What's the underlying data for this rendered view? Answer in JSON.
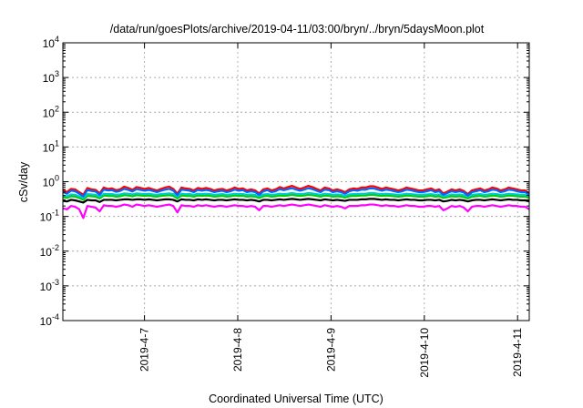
{
  "chart_data": {
    "type": "line",
    "title": "/data/run/goesPlots/archive/2019-04-11/03:00/bryn/../bryn/5daysMoon.plot",
    "xlabel": "Coordinated Universal Time (UTC)",
    "ylabel": "cSv/day",
    "yscale": "log",
    "ylim": [
      0.0001,
      10000
    ],
    "y_ticks": [
      {
        "value": 0.0001,
        "base": "10",
        "exp": "-4"
      },
      {
        "value": 0.001,
        "base": "10",
        "exp": "-3"
      },
      {
        "value": 0.01,
        "base": "10",
        "exp": "-2"
      },
      {
        "value": 0.1,
        "base": "10",
        "exp": "-1"
      },
      {
        "value": 1,
        "base": "10",
        "exp": "0"
      },
      {
        "value": 10,
        "base": "10",
        "exp": "1"
      },
      {
        "value": 100,
        "base": "10",
        "exp": "2"
      },
      {
        "value": 1000,
        "base": "10",
        "exp": "3"
      },
      {
        "value": 10000,
        "base": "10",
        "exp": "4"
      }
    ],
    "x_ticks": [
      "2019-4-7",
      "2019-4-8",
      "2019-4-9",
      "2019-4-10",
      "2019-4-11"
    ],
    "xlim": [
      "2019-04-06T03:00",
      "2019-04-11T03:00"
    ],
    "grid": true,
    "legend": "none",
    "series": [
      {
        "color": "#ff00ff",
        "values": [
          0.17,
          0.16,
          0.2,
          0.19,
          0.16,
          0.09,
          0.2,
          0.19,
          0.18,
          0.14,
          0.21,
          0.2,
          0.2,
          0.19,
          0.2,
          0.22,
          0.21,
          0.19,
          0.22,
          0.21,
          0.2,
          0.21,
          0.2,
          0.19,
          0.2,
          0.21,
          0.22,
          0.2,
          0.13,
          0.21,
          0.2,
          0.2,
          0.19,
          0.21,
          0.2,
          0.21,
          0.2,
          0.19,
          0.2,
          0.2,
          0.19,
          0.2,
          0.21,
          0.2,
          0.2,
          0.19,
          0.2,
          0.19,
          0.15,
          0.2,
          0.2,
          0.19,
          0.2,
          0.21,
          0.2,
          0.21,
          0.22,
          0.21,
          0.2,
          0.21,
          0.22,
          0.21,
          0.2,
          0.19,
          0.21,
          0.2,
          0.19,
          0.2,
          0.19,
          0.17,
          0.2,
          0.2,
          0.2,
          0.21,
          0.21,
          0.22,
          0.22,
          0.21,
          0.2,
          0.21,
          0.2,
          0.2,
          0.19,
          0.2,
          0.21,
          0.2,
          0.2,
          0.19,
          0.19,
          0.2,
          0.2,
          0.19,
          0.2,
          0.15,
          0.17,
          0.2,
          0.19,
          0.2,
          0.18,
          0.14,
          0.19,
          0.2,
          0.2,
          0.19,
          0.2,
          0.21,
          0.2,
          0.19,
          0.2,
          0.21,
          0.2,
          0.2,
          0.19,
          0.19,
          0.16
        ]
      },
      {
        "color": "#000000",
        "values": [
          0.28,
          0.27,
          0.3,
          0.29,
          0.27,
          0.25,
          0.3,
          0.29,
          0.29,
          0.26,
          0.3,
          0.3,
          0.3,
          0.29,
          0.3,
          0.31,
          0.31,
          0.3,
          0.31,
          0.31,
          0.3,
          0.31,
          0.3,
          0.29,
          0.3,
          0.31,
          0.31,
          0.3,
          0.27,
          0.31,
          0.3,
          0.3,
          0.29,
          0.31,
          0.3,
          0.31,
          0.3,
          0.29,
          0.3,
          0.3,
          0.29,
          0.3,
          0.31,
          0.3,
          0.3,
          0.29,
          0.3,
          0.29,
          0.27,
          0.3,
          0.3,
          0.29,
          0.3,
          0.31,
          0.3,
          0.31,
          0.32,
          0.31,
          0.3,
          0.31,
          0.32,
          0.31,
          0.3,
          0.29,
          0.31,
          0.3,
          0.29,
          0.3,
          0.29,
          0.28,
          0.3,
          0.3,
          0.3,
          0.31,
          0.31,
          0.32,
          0.32,
          0.31,
          0.3,
          0.31,
          0.3,
          0.3,
          0.29,
          0.3,
          0.31,
          0.3,
          0.3,
          0.29,
          0.29,
          0.3,
          0.3,
          0.29,
          0.3,
          0.27,
          0.28,
          0.3,
          0.29,
          0.3,
          0.29,
          0.27,
          0.29,
          0.3,
          0.3,
          0.29,
          0.3,
          0.31,
          0.3,
          0.29,
          0.3,
          0.31,
          0.3,
          0.3,
          0.29,
          0.29,
          0.27
        ]
      },
      {
        "color": "#00cc00",
        "values": [
          0.36,
          0.34,
          0.38,
          0.37,
          0.34,
          0.3,
          0.39,
          0.38,
          0.37,
          0.33,
          0.4,
          0.39,
          0.39,
          0.37,
          0.38,
          0.41,
          0.4,
          0.38,
          0.41,
          0.4,
          0.39,
          0.4,
          0.38,
          0.37,
          0.39,
          0.4,
          0.41,
          0.39,
          0.33,
          0.4,
          0.39,
          0.39,
          0.37,
          0.4,
          0.39,
          0.4,
          0.39,
          0.37,
          0.38,
          0.39,
          0.37,
          0.38,
          0.4,
          0.39,
          0.39,
          0.37,
          0.38,
          0.37,
          0.34,
          0.38,
          0.39,
          0.37,
          0.38,
          0.4,
          0.39,
          0.4,
          0.42,
          0.4,
          0.39,
          0.4,
          0.42,
          0.41,
          0.39,
          0.37,
          0.4,
          0.39,
          0.37,
          0.38,
          0.37,
          0.35,
          0.38,
          0.39,
          0.39,
          0.4,
          0.4,
          0.42,
          0.42,
          0.4,
          0.39,
          0.4,
          0.39,
          0.38,
          0.37,
          0.38,
          0.4,
          0.39,
          0.38,
          0.37,
          0.37,
          0.38,
          0.39,
          0.37,
          0.38,
          0.34,
          0.36,
          0.38,
          0.37,
          0.38,
          0.36,
          0.33,
          0.37,
          0.38,
          0.39,
          0.37,
          0.38,
          0.4,
          0.39,
          0.37,
          0.38,
          0.4,
          0.39,
          0.38,
          0.37,
          0.37,
          0.34
        ]
      },
      {
        "color": "#00cccc",
        "values": [
          0.4,
          0.38,
          0.43,
          0.42,
          0.38,
          0.34,
          0.44,
          0.43,
          0.42,
          0.37,
          0.45,
          0.44,
          0.44,
          0.42,
          0.43,
          0.46,
          0.45,
          0.43,
          0.46,
          0.45,
          0.44,
          0.45,
          0.43,
          0.42,
          0.44,
          0.45,
          0.46,
          0.44,
          0.37,
          0.45,
          0.44,
          0.44,
          0.42,
          0.45,
          0.44,
          0.45,
          0.44,
          0.42,
          0.43,
          0.44,
          0.42,
          0.43,
          0.45,
          0.44,
          0.44,
          0.42,
          0.43,
          0.42,
          0.38,
          0.43,
          0.44,
          0.42,
          0.43,
          0.45,
          0.44,
          0.45,
          0.47,
          0.45,
          0.44,
          0.45,
          0.47,
          0.46,
          0.44,
          0.42,
          0.45,
          0.44,
          0.42,
          0.43,
          0.42,
          0.39,
          0.43,
          0.44,
          0.44,
          0.45,
          0.45,
          0.47,
          0.47,
          0.45,
          0.44,
          0.45,
          0.44,
          0.43,
          0.42,
          0.43,
          0.45,
          0.44,
          0.43,
          0.42,
          0.42,
          0.43,
          0.44,
          0.42,
          0.43,
          0.38,
          0.4,
          0.43,
          0.42,
          0.43,
          0.41,
          0.37,
          0.42,
          0.43,
          0.44,
          0.42,
          0.43,
          0.45,
          0.44,
          0.42,
          0.43,
          0.45,
          0.44,
          0.43,
          0.42,
          0.42,
          0.38
        ]
      },
      {
        "color": "#ff0000",
        "values": [
          0.58,
          0.5,
          0.62,
          0.6,
          0.5,
          0.42,
          0.66,
          0.6,
          0.58,
          0.46,
          0.68,
          0.62,
          0.64,
          0.57,
          0.6,
          0.72,
          0.66,
          0.58,
          0.7,
          0.66,
          0.62,
          0.66,
          0.6,
          0.56,
          0.62,
          0.68,
          0.72,
          0.62,
          0.45,
          0.68,
          0.64,
          0.62,
          0.56,
          0.66,
          0.62,
          0.66,
          0.62,
          0.56,
          0.6,
          0.62,
          0.56,
          0.6,
          0.68,
          0.62,
          0.64,
          0.56,
          0.6,
          0.56,
          0.46,
          0.6,
          0.64,
          0.56,
          0.6,
          0.7,
          0.64,
          0.7,
          0.76,
          0.68,
          0.62,
          0.68,
          0.76,
          0.7,
          0.62,
          0.56,
          0.68,
          0.64,
          0.56,
          0.6,
          0.56,
          0.5,
          0.6,
          0.64,
          0.62,
          0.68,
          0.68,
          0.74,
          0.74,
          0.68,
          0.62,
          0.68,
          0.64,
          0.6,
          0.56,
          0.6,
          0.68,
          0.64,
          0.6,
          0.56,
          0.56,
          0.6,
          0.64,
          0.56,
          0.6,
          0.46,
          0.52,
          0.6,
          0.56,
          0.6,
          0.54,
          0.44,
          0.56,
          0.6,
          0.64,
          0.56,
          0.6,
          0.68,
          0.64,
          0.56,
          0.6,
          0.68,
          0.64,
          0.6,
          0.56,
          0.56,
          0.46
        ]
      },
      {
        "color": "#0066ff",
        "values": [
          0.5,
          0.45,
          0.55,
          0.53,
          0.45,
          0.38,
          0.57,
          0.54,
          0.52,
          0.42,
          0.59,
          0.56,
          0.57,
          0.51,
          0.54,
          0.62,
          0.58,
          0.52,
          0.61,
          0.58,
          0.55,
          0.58,
          0.54,
          0.5,
          0.55,
          0.59,
          0.62,
          0.55,
          0.41,
          0.59,
          0.57,
          0.55,
          0.5,
          0.58,
          0.55,
          0.58,
          0.55,
          0.5,
          0.53,
          0.55,
          0.5,
          0.53,
          0.59,
          0.55,
          0.57,
          0.5,
          0.53,
          0.5,
          0.42,
          0.53,
          0.57,
          0.5,
          0.53,
          0.61,
          0.57,
          0.61,
          0.65,
          0.59,
          0.55,
          0.59,
          0.65,
          0.61,
          0.55,
          0.5,
          0.59,
          0.57,
          0.5,
          0.53,
          0.5,
          0.45,
          0.53,
          0.57,
          0.55,
          0.59,
          0.59,
          0.64,
          0.64,
          0.59,
          0.55,
          0.59,
          0.57,
          0.53,
          0.5,
          0.53,
          0.59,
          0.57,
          0.53,
          0.5,
          0.5,
          0.53,
          0.57,
          0.5,
          0.53,
          0.42,
          0.47,
          0.53,
          0.5,
          0.53,
          0.49,
          0.4,
          0.5,
          0.53,
          0.57,
          0.5,
          0.53,
          0.59,
          0.57,
          0.5,
          0.53,
          0.59,
          0.57,
          0.53,
          0.5,
          0.5,
          0.42
        ]
      }
    ]
  }
}
